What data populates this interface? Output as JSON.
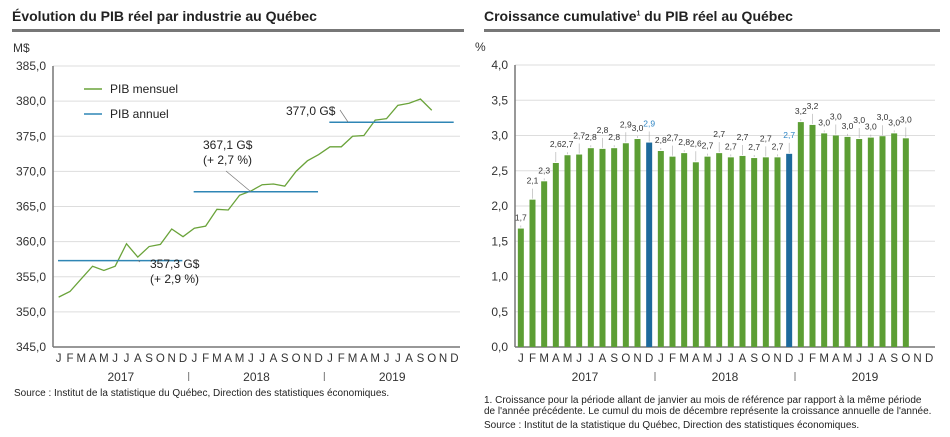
{
  "left": {
    "title": "Évolution du PIB réel par industrie au Québec",
    "source": "Source : Institut de la statistique du Québec, Direction des statistiques économiques.",
    "chart_data": {
      "type": "line",
      "ylabel": "M$",
      "ylim": [
        345,
        385
      ],
      "yticks": [
        "345,0",
        "350,0",
        "355,0",
        "360,0",
        "365,0",
        "370,0",
        "375,0",
        "380,0",
        "385,0"
      ],
      "month_labels": [
        "J",
        "F",
        "M",
        "A",
        "M",
        "J",
        "J",
        "A",
        "S",
        "O",
        "N",
        "D"
      ],
      "years": [
        "2017",
        "2018",
        "2019"
      ],
      "grid": true,
      "legend_placement": "top-left",
      "series": [
        {
          "name": "PIB mensuel",
          "color": "#6aa33a",
          "values": [
            352.1,
            352.9,
            354.7,
            356.5,
            355.9,
            356.5,
            359.7,
            357.8,
            359.3,
            359.6,
            361.8,
            360.7,
            361.9,
            362.2,
            364.6,
            364.5,
            366.6,
            367.2,
            368.1,
            368.2,
            367.9,
            370.0,
            371.5,
            372.4,
            373.5,
            373.5,
            375.0,
            375.1,
            377.3,
            377.5,
            379.4,
            379.7,
            380.3,
            378.7
          ]
        },
        {
          "name": "PIB annuel",
          "color": "#2f86b5",
          "values": [
            357.3,
            367.1,
            377.0
          ]
        }
      ],
      "annotations": [
        {
          "lines": [
            "357,3 G$",
            "(+ 2,9 %)"
          ]
        },
        {
          "lines": [
            "367,1 G$",
            "(+ 2,7 %)"
          ]
        },
        {
          "lines": [
            "377,0 G$"
          ]
        }
      ]
    }
  },
  "right": {
    "title": "Croissance cumulative",
    "title_sup": "1",
    "title_rest": " du PIB réel au Québec",
    "footnote_1": "1. Croissance pour la période allant de janvier au mois de référence par rapport à la même période",
    "footnote_2": "de l'année précédente. Le cumul du mois de décembre représente la croissance annuelle de l'année.",
    "source": "Source : Institut de la statistique du Québec, Direction des statistiques économiques.",
    "chart_data": {
      "type": "bar",
      "ylabel": "%",
      "ylim": [
        0,
        4
      ],
      "yticks": [
        "0,0",
        "0,5",
        "1,0",
        "1,5",
        "2,0",
        "2,5",
        "3,0",
        "3,5",
        "4,0"
      ],
      "month_labels": [
        "J",
        "F",
        "M",
        "A",
        "M",
        "J",
        "J",
        "A",
        "S",
        "O",
        "N",
        "D"
      ],
      "years": [
        "2017",
        "2018",
        "2019"
      ],
      "grid": true,
      "colors": {
        "month": "#5c9e34",
        "december": "#1d6a9c",
        "december_label": "#2f86c5"
      },
      "values": [
        1.68,
        2.09,
        2.35,
        2.61,
        2.72,
        2.73,
        2.82,
        2.81,
        2.82,
        2.89,
        2.95,
        2.9,
        2.78,
        2.7,
        2.75,
        2.62,
        2.7,
        2.75,
        2.69,
        2.71,
        2.68,
        2.69,
        2.69,
        2.74,
        3.19,
        3.15,
        3.03,
        3.0,
        2.98,
        2.95,
        2.97,
        2.99,
        3.03,
        2.96
      ],
      "labels": [
        "1,7",
        "2,1",
        "2,3",
        "2,6",
        "2,7",
        "2,7",
        "2,8",
        "2,8",
        "2,8",
        "2,9",
        "3,0",
        "2,9",
        "2,8",
        "2,7",
        "2,8",
        "2,6",
        "2,7",
        "2,7",
        "2,7",
        "2,7",
        "2,7",
        "2,7",
        "2,7",
        "2,7",
        "3,2",
        "3,2",
        "3,0",
        "3,0",
        "3,0",
        "3,0",
        "3,0",
        "3,0",
        "3,0",
        "3,0"
      ]
    }
  }
}
